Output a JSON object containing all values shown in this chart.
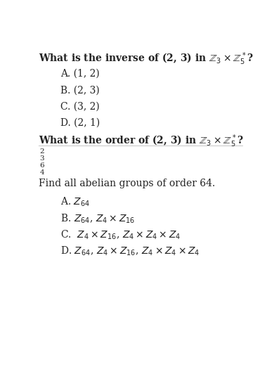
{
  "bg_color": "#ffffff",
  "text_color": "#222222",
  "figsize": [
    3.9,
    5.42
  ],
  "dpi": 100,
  "q1_line1": "What is the inverse of (2, 3) in $\\mathbb{Z}_3 \\times \\mathbb{Z}_5^*$?",
  "q1_options": [
    "A. (1, 2)",
    "B. (2, 3)",
    "C. (3, 2)",
    "D. (2, 1)"
  ],
  "q2_line1": "What is the order of (2, 3) in $\\mathbb{Z}_3 \\times \\mathbb{Z}_5^*$?",
  "q2_options": [
    "2",
    "3",
    "6",
    "4"
  ],
  "q3_line1": "Find all abelian groups of order 64.",
  "q3_options": [
    "A. $Z_{64}$",
    "B. $Z_{64}$, $Z_4 \\times Z_{16}$",
    "C.  $Z_4 \\times Z_{16}$, $Z_4 \\times Z_4 \\times Z_4$",
    "D. $Z_{64}$, $Z_4 \\times Z_{16}$, $Z_4 \\times Z_4 \\times Z_4$"
  ]
}
